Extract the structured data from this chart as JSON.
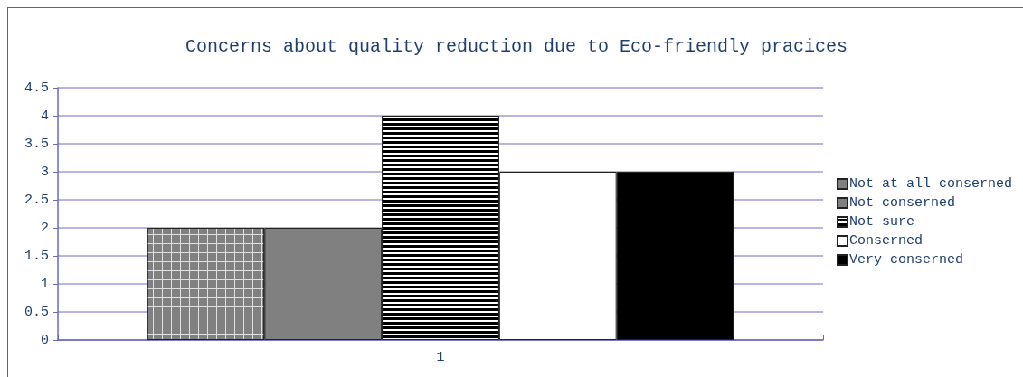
{
  "chart_data": {
    "type": "bar",
    "title": "Concerns about quality reduction due to Eco-friendly pracices",
    "categories": [
      "1"
    ],
    "series": [
      {
        "name": "Not at all conserned",
        "color": "#808080",
        "values": [
          2
        ]
      },
      {
        "name": "Not conserned",
        "color": "#808080",
        "values": [
          2
        ]
      },
      {
        "name": "Not sure",
        "color": "#000000",
        "values": [
          4
        ]
      },
      {
        "name": "Conserned",
        "color": "#ffffff",
        "values": [
          3
        ]
      },
      {
        "name": "Very conserned",
        "color": "#000000",
        "values": [
          3
        ]
      }
    ],
    "ylim": [
      0,
      4.5
    ],
    "yticks": [
      0,
      0.5,
      1,
      1.5,
      2,
      2.5,
      3,
      3.5,
      4,
      4.5
    ],
    "grid": "y",
    "legend": "right"
  }
}
